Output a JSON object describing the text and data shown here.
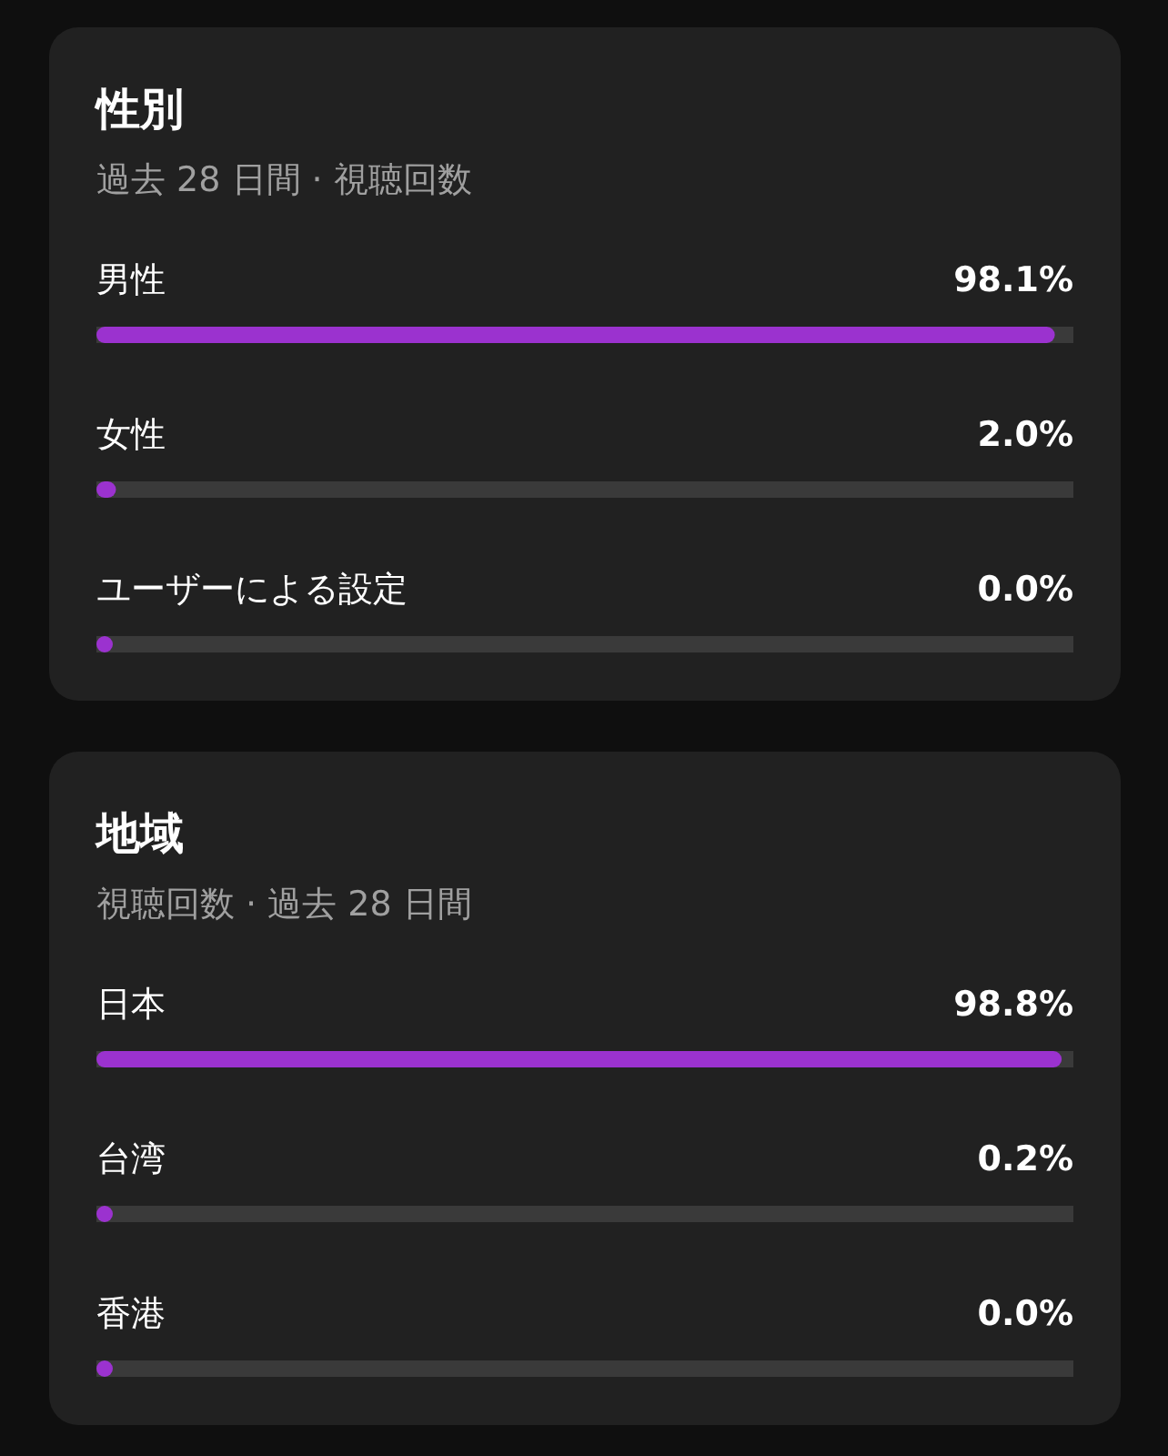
{
  "chart_data": [
    {
      "type": "bar",
      "orientation": "horizontal",
      "title": "性別",
      "subtitle": "過去 28 日間 · 視聴回数",
      "categories": [
        "男性",
        "女性",
        "ユーザーによる設定"
      ],
      "values": [
        98.1,
        2.0,
        0.0
      ],
      "value_labels": [
        "98.1%",
        "2.0%",
        "0.0%"
      ],
      "color": "#9b32cf",
      "xlim": [
        0,
        100
      ]
    },
    {
      "type": "bar",
      "orientation": "horizontal",
      "title": "地域",
      "subtitle": "視聴回数 · 過去 28 日間",
      "categories": [
        "日本",
        "台湾",
        "香港"
      ],
      "values": [
        98.8,
        0.2,
        0.0
      ],
      "value_labels": [
        "98.8%",
        "0.2%",
        "0.0%"
      ],
      "color": "#9b32cf",
      "xlim": [
        0,
        100
      ]
    }
  ]
}
